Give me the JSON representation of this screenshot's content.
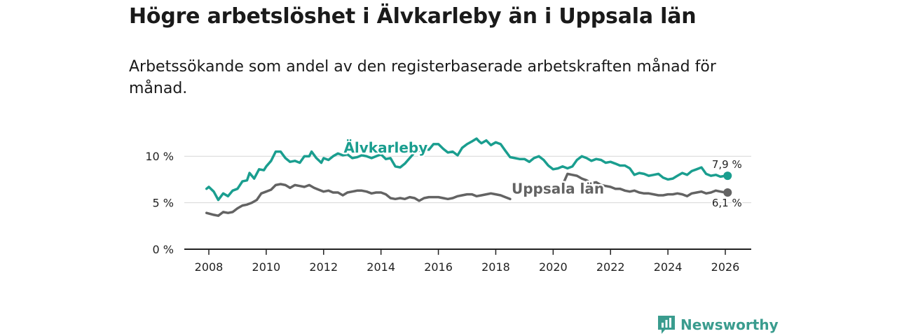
{
  "title": "Högre arbetslöshet i Älvkarleby än i Uppsala län",
  "subtitle": "Arbetssökande som andel av den registerbaserade arbetskraften månad för månad.",
  "brand": {
    "name": "Newsworthy",
    "icon": "newsworthy-logo-icon",
    "color": "#3a9c8e"
  },
  "chart_data": {
    "type": "line",
    "x_ticks": [
      "2008",
      "2010",
      "2012",
      "2014",
      "2016",
      "2018",
      "2020",
      "2022",
      "2024",
      "2026"
    ],
    "y_ticks": [
      {
        "value": 0,
        "label": "0 %"
      },
      {
        "value": 5,
        "label": "5 %"
      },
      {
        "value": 10,
        "label": "10 %"
      }
    ],
    "xlim": [
      2007.1,
      2027.0
    ],
    "ylim": [
      0,
      12.5
    ],
    "grid": true,
    "series": [
      {
        "name": "Älvkarleby",
        "color": "#1a9e8f",
        "label_x": 2012.7,
        "label_y": 10.4,
        "end_label": "7,9 %",
        "points": [
          [
            2007.92,
            6.5
          ],
          [
            2008.0,
            6.7
          ],
          [
            2008.17,
            6.2
          ],
          [
            2008.33,
            5.3
          ],
          [
            2008.5,
            6.0
          ],
          [
            2008.67,
            5.7
          ],
          [
            2008.83,
            6.3
          ],
          [
            2009.0,
            6.5
          ],
          [
            2009.17,
            7.3
          ],
          [
            2009.33,
            7.4
          ],
          [
            2009.42,
            8.2
          ],
          [
            2009.58,
            7.6
          ],
          [
            2009.75,
            8.6
          ],
          [
            2009.92,
            8.5
          ],
          [
            2010.0,
            8.9
          ],
          [
            2010.17,
            9.5
          ],
          [
            2010.33,
            10.5
          ],
          [
            2010.5,
            10.5
          ],
          [
            2010.67,
            9.8
          ],
          [
            2010.83,
            9.4
          ],
          [
            2011.0,
            9.5
          ],
          [
            2011.17,
            9.3
          ],
          [
            2011.33,
            10.0
          ],
          [
            2011.5,
            10.0
          ],
          [
            2011.58,
            10.5
          ],
          [
            2011.75,
            9.8
          ],
          [
            2011.92,
            9.3
          ],
          [
            2012.0,
            9.8
          ],
          [
            2012.17,
            9.6
          ],
          [
            2012.33,
            10.0
          ],
          [
            2012.5,
            10.3
          ],
          [
            2012.67,
            10.1
          ],
          [
            2012.83,
            10.2
          ],
          [
            2013.0,
            9.8
          ],
          [
            2013.17,
            9.9
          ],
          [
            2013.33,
            10.1
          ],
          [
            2013.5,
            10.0
          ],
          [
            2013.67,
            9.8
          ],
          [
            2013.83,
            10.0
          ],
          [
            2014.0,
            10.2
          ],
          [
            2014.17,
            9.7
          ],
          [
            2014.33,
            9.8
          ],
          [
            2014.5,
            8.9
          ],
          [
            2014.67,
            8.8
          ],
          [
            2014.83,
            9.2
          ],
          [
            2015.0,
            9.8
          ],
          [
            2015.17,
            10.4
          ],
          [
            2015.33,
            10.6
          ],
          [
            2015.5,
            10.8
          ],
          [
            2015.67,
            10.7
          ],
          [
            2015.83,
            11.3
          ],
          [
            2016.0,
            11.3
          ],
          [
            2016.17,
            10.8
          ],
          [
            2016.33,
            10.4
          ],
          [
            2016.5,
            10.5
          ],
          [
            2016.67,
            10.1
          ],
          [
            2016.83,
            10.9
          ],
          [
            2017.0,
            11.3
          ],
          [
            2017.17,
            11.6
          ],
          [
            2017.33,
            11.9
          ],
          [
            2017.42,
            11.6
          ],
          [
            2017.5,
            11.4
          ],
          [
            2017.67,
            11.7
          ],
          [
            2017.83,
            11.2
          ],
          [
            2018.0,
            11.5
          ],
          [
            2018.17,
            11.3
          ],
          [
            2018.33,
            10.6
          ],
          [
            2018.5,
            9.9
          ],
          [
            2018.67,
            9.8
          ],
          [
            2018.83,
            9.7
          ],
          [
            2019.0,
            9.7
          ],
          [
            2019.17,
            9.4
          ],
          [
            2019.33,
            9.8
          ],
          [
            2019.5,
            10.0
          ],
          [
            2019.67,
            9.6
          ],
          [
            2019.83,
            9.0
          ],
          [
            2020.0,
            8.6
          ],
          [
            2020.17,
            8.7
          ],
          [
            2020.33,
            8.9
          ],
          [
            2020.5,
            8.7
          ],
          [
            2020.67,
            8.9
          ],
          [
            2020.83,
            9.6
          ],
          [
            2021.0,
            10.0
          ],
          [
            2021.17,
            9.8
          ],
          [
            2021.33,
            9.5
          ],
          [
            2021.5,
            9.7
          ],
          [
            2021.67,
            9.6
          ],
          [
            2021.83,
            9.3
          ],
          [
            2022.0,
            9.4
          ],
          [
            2022.17,
            9.2
          ],
          [
            2022.33,
            9.0
          ],
          [
            2022.5,
            9.0
          ],
          [
            2022.67,
            8.7
          ],
          [
            2022.83,
            8.0
          ],
          [
            2023.0,
            8.2
          ],
          [
            2023.17,
            8.1
          ],
          [
            2023.33,
            7.9
          ],
          [
            2023.5,
            8.0
          ],
          [
            2023.67,
            8.1
          ],
          [
            2023.83,
            7.7
          ],
          [
            2024.0,
            7.5
          ],
          [
            2024.17,
            7.6
          ],
          [
            2024.33,
            7.9
          ],
          [
            2024.5,
            8.2
          ],
          [
            2024.67,
            8.0
          ],
          [
            2024.83,
            8.4
          ],
          [
            2025.0,
            8.6
          ],
          [
            2025.17,
            8.8
          ],
          [
            2025.33,
            8.1
          ],
          [
            2025.5,
            7.9
          ],
          [
            2025.67,
            8.0
          ],
          [
            2025.83,
            7.8
          ],
          [
            2026.0,
            7.9
          ],
          [
            2026.08,
            7.9
          ]
        ]
      },
      {
        "name": "Uppsala län",
        "color": "#636363",
        "label_x": 2018.55,
        "label_y": 6.0,
        "end_label": "6,1 %",
        "points": [
          [
            2007.92,
            3.9
          ],
          [
            2008.17,
            3.7
          ],
          [
            2008.33,
            3.6
          ],
          [
            2008.5,
            4.0
          ],
          [
            2008.67,
            3.9
          ],
          [
            2008.83,
            4.0
          ],
          [
            2009.0,
            4.4
          ],
          [
            2009.17,
            4.7
          ],
          [
            2009.33,
            4.8
          ],
          [
            2009.5,
            5.0
          ],
          [
            2009.67,
            5.3
          ],
          [
            2009.83,
            6.0
          ],
          [
            2010.0,
            6.2
          ],
          [
            2010.17,
            6.4
          ],
          [
            2010.33,
            6.9
          ],
          [
            2010.5,
            7.0
          ],
          [
            2010.67,
            6.9
          ],
          [
            2010.83,
            6.6
          ],
          [
            2011.0,
            6.9
          ],
          [
            2011.17,
            6.8
          ],
          [
            2011.33,
            6.7
          ],
          [
            2011.5,
            6.9
          ],
          [
            2011.67,
            6.6
          ],
          [
            2011.83,
            6.4
          ],
          [
            2012.0,
            6.2
          ],
          [
            2012.17,
            6.3
          ],
          [
            2012.33,
            6.1
          ],
          [
            2012.5,
            6.1
          ],
          [
            2012.67,
            5.8
          ],
          [
            2012.83,
            6.1
          ],
          [
            2013.0,
            6.2
          ],
          [
            2013.17,
            6.3
          ],
          [
            2013.33,
            6.3
          ],
          [
            2013.5,
            6.2
          ],
          [
            2013.67,
            6.0
          ],
          [
            2013.83,
            6.1
          ],
          [
            2014.0,
            6.1
          ],
          [
            2014.17,
            5.9
          ],
          [
            2014.33,
            5.5
          ],
          [
            2014.5,
            5.4
          ],
          [
            2014.67,
            5.5
          ],
          [
            2014.83,
            5.4
          ],
          [
            2015.0,
            5.6
          ],
          [
            2015.17,
            5.5
          ],
          [
            2015.33,
            5.2
          ],
          [
            2015.5,
            5.5
          ],
          [
            2015.67,
            5.6
          ],
          [
            2015.83,
            5.6
          ],
          [
            2016.0,
            5.6
          ],
          [
            2016.17,
            5.5
          ],
          [
            2016.33,
            5.4
          ],
          [
            2016.5,
            5.5
          ],
          [
            2016.67,
            5.7
          ],
          [
            2016.83,
            5.8
          ],
          [
            2017.0,
            5.9
          ],
          [
            2017.17,
            5.9
          ],
          [
            2017.33,
            5.7
          ],
          [
            2017.5,
            5.8
          ],
          [
            2017.67,
            5.9
          ],
          [
            2017.83,
            6.0
          ],
          [
            2018.0,
            5.9
          ],
          [
            2018.17,
            5.8
          ],
          [
            2018.33,
            5.6
          ],
          [
            2018.5,
            5.4
          ],
          [
            2020.33,
            6.9
          ],
          [
            2020.5,
            8.1
          ],
          [
            2020.67,
            8.0
          ],
          [
            2020.83,
            7.9
          ],
          [
            2021.0,
            7.6
          ],
          [
            2021.17,
            7.4
          ],
          [
            2021.33,
            7.1
          ],
          [
            2021.5,
            7.2
          ],
          [
            2021.67,
            6.9
          ],
          [
            2021.83,
            6.8
          ],
          [
            2022.0,
            6.7
          ],
          [
            2022.17,
            6.5
          ],
          [
            2022.33,
            6.5
          ],
          [
            2022.5,
            6.3
          ],
          [
            2022.67,
            6.2
          ],
          [
            2022.83,
            6.3
          ],
          [
            2023.0,
            6.1
          ],
          [
            2023.17,
            6.0
          ],
          [
            2023.33,
            6.0
          ],
          [
            2023.5,
            5.9
          ],
          [
            2023.67,
            5.8
          ],
          [
            2023.83,
            5.8
          ],
          [
            2024.0,
            5.9
          ],
          [
            2024.17,
            5.9
          ],
          [
            2024.33,
            6.0
          ],
          [
            2024.5,
            5.9
          ],
          [
            2024.67,
            5.7
          ],
          [
            2024.83,
            6.0
          ],
          [
            2025.0,
            6.1
          ],
          [
            2025.17,
            6.2
          ],
          [
            2025.33,
            6.0
          ],
          [
            2025.5,
            6.1
          ],
          [
            2025.67,
            6.3
          ],
          [
            2025.83,
            6.2
          ],
          [
            2026.0,
            6.1
          ],
          [
            2026.08,
            6.1
          ]
        ]
      }
    ]
  }
}
